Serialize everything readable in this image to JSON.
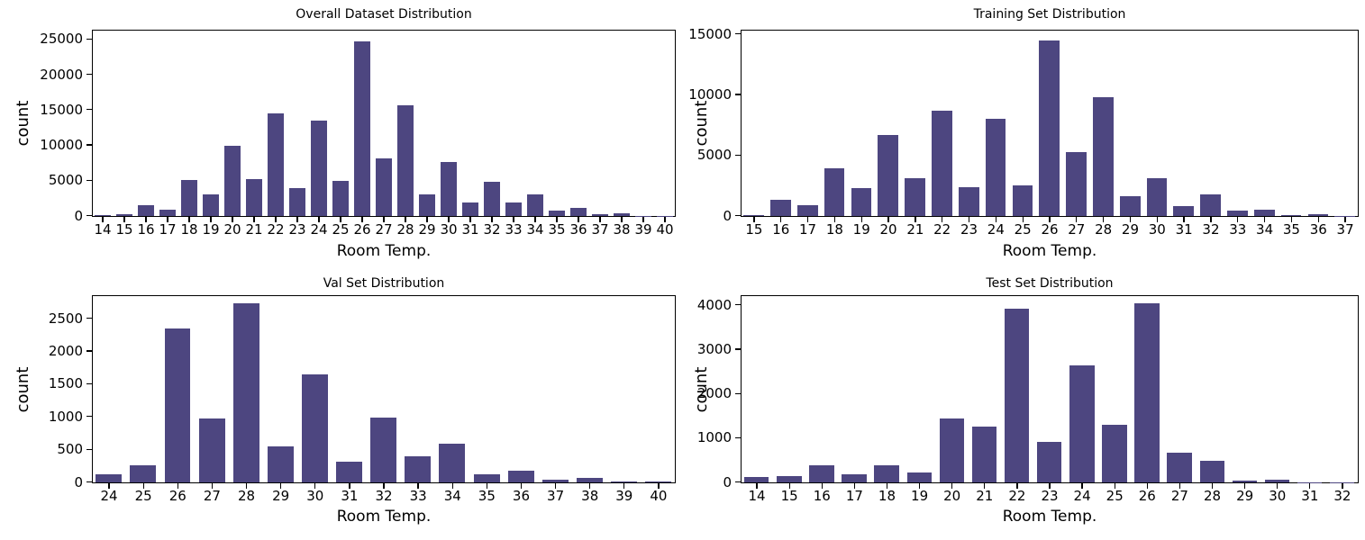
{
  "figure": {
    "background_color": "#ffffff",
    "bar_color": "#4d4680",
    "axis_color": "#000000",
    "text_color": "#000000"
  },
  "chart_data": [
    {
      "type": "bar",
      "title": "Overall Dataset Distribution",
      "xlabel": "Room Temp.",
      "ylabel": "count",
      "categories": [
        14,
        15,
        16,
        17,
        18,
        19,
        20,
        21,
        22,
        23,
        24,
        25,
        26,
        27,
        28,
        29,
        30,
        31,
        32,
        33,
        34,
        35,
        36,
        37,
        38,
        39,
        40
      ],
      "values": [
        150,
        200,
        1500,
        900,
        5100,
        3100,
        9900,
        5250,
        14500,
        4000,
        13500,
        5000,
        24700,
        8100,
        15700,
        3000,
        7600,
        1900,
        4900,
        1900,
        3100,
        750,
        1100,
        200,
        330,
        25,
        15
      ],
      "yticks": [
        0,
        5000,
        10000,
        15000,
        20000,
        25000
      ],
      "ylim": [
        0,
        26300
      ],
      "grid": false,
      "legend": null
    },
    {
      "type": "bar",
      "title": "Training Set Distribution",
      "xlabel": "Room Temp.",
      "ylabel": "count",
      "categories": [
        15,
        16,
        17,
        18,
        19,
        20,
        21,
        22,
        23,
        24,
        25,
        26,
        27,
        28,
        29,
        30,
        31,
        32,
        33,
        34,
        35,
        36,
        37
      ],
      "values": [
        100,
        1300,
        900,
        3900,
        2300,
        6700,
        3100,
        8650,
        2350,
        8000,
        2500,
        14500,
        5300,
        9800,
        1600,
        3150,
        800,
        1800,
        420,
        550,
        100,
        170,
        20
      ],
      "yticks": [
        0,
        5000,
        10000,
        15000
      ],
      "ylim": [
        0,
        15340
      ],
      "grid": false,
      "legend": null
    },
    {
      "type": "bar",
      "title": "Val Set Distribution",
      "xlabel": "Room Temp.",
      "ylabel": "count",
      "categories": [
        24,
        25,
        26,
        27,
        28,
        29,
        30,
        31,
        32,
        33,
        34,
        35,
        36,
        37,
        38,
        39,
        40
      ],
      "values": [
        130,
        260,
        2350,
        975,
        2730,
        555,
        1640,
        315,
        990,
        395,
        585,
        130,
        180,
        45,
        70,
        20,
        20
      ],
      "yticks": [
        0,
        500,
        1000,
        1500,
        2000,
        2500
      ],
      "ylim": [
        0,
        2850
      ],
      "grid": false,
      "legend": null
    },
    {
      "type": "bar",
      "title": "Test Set Distribution",
      "xlabel": "Room Temp.",
      "ylabel": "count",
      "categories": [
        14,
        15,
        16,
        17,
        18,
        19,
        20,
        21,
        22,
        23,
        24,
        25,
        26,
        27,
        28,
        29,
        30,
        31,
        32
      ],
      "values": [
        130,
        150,
        390,
        190,
        390,
        230,
        1450,
        1250,
        3920,
        910,
        2650,
        1310,
        4040,
        680,
        480,
        50,
        65,
        5,
        5
      ],
      "yticks": [
        0,
        1000,
        2000,
        3000,
        4000
      ],
      "ylim": [
        0,
        4220
      ],
      "grid": false,
      "legend": null
    }
  ]
}
